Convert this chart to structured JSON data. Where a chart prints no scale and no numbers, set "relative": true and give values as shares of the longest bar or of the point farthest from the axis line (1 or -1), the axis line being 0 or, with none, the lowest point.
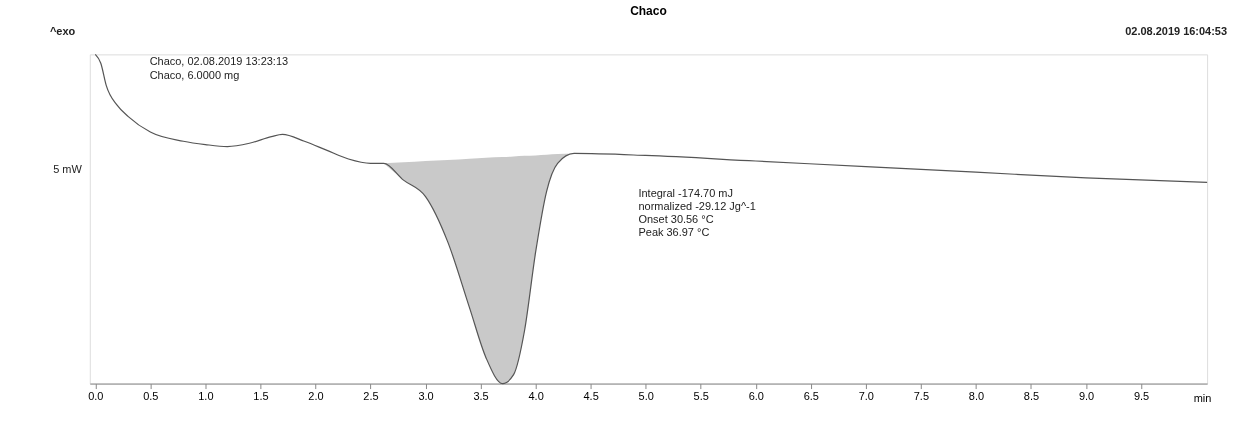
{
  "chart_data": {
    "type": "line",
    "title": "Chaco",
    "xlabel": "min",
    "ylabel": "5 mW",
    "relative": true,
    "marker": "none",
    "line_style": "solid",
    "annotations": [
      "^exo",
      "02.08.2019 16:04:53",
      "Chaco, 02.08.2019 13:23:13",
      "Chaco, 6.0000 mg",
      "Integral   -174.70 mJ",
      "  normalized   -29.12 Jg^-1",
      "Onset   30.56 °C",
      "Peak   36.97 °C"
    ],
    "x": [
      0.0,
      0.05,
      0.1,
      0.2,
      0.3,
      0.5,
      0.8,
      1.0,
      1.2,
      1.4,
      1.6,
      1.7,
      1.9,
      2.1,
      2.3,
      2.5,
      2.62,
      2.8,
      3.0,
      3.2,
      3.4,
      3.55,
      3.7,
      3.8,
      3.9,
      4.0,
      4.1,
      4.2,
      4.35,
      5.0,
      6.0,
      7.0,
      8.0,
      9.0,
      10.1
    ],
    "series": [
      {
        "color": "#555555",
        "values": [
          1.0,
          0.973,
          0.905,
          0.845,
          0.811,
          0.764,
          0.736,
          0.726,
          0.72,
          0.73,
          0.75,
          0.757,
          0.736,
          0.709,
          0.682,
          0.669,
          0.669,
          0.618,
          0.568,
          0.432,
          0.23,
          0.078,
          0.0,
          0.027,
          0.162,
          0.399,
          0.584,
          0.669,
          0.699,
          0.693,
          0.676,
          0.659,
          0.642,
          0.625,
          0.611
        ],
        "lower": [
          null,
          null,
          null,
          null,
          null,
          null,
          null,
          null,
          null,
          null,
          null,
          null,
          null,
          null,
          null,
          null,
          0.669,
          0.618,
          0.568,
          0.432,
          0.23,
          0.078,
          0.0,
          0.027,
          0.162,
          0.399,
          0.584,
          0.669,
          0.699,
          null,
          null,
          null,
          null,
          null,
          null
        ],
        "upper": [
          null,
          null,
          null,
          null,
          null,
          null,
          null,
          null,
          null,
          null,
          null,
          null,
          null,
          null,
          null,
          null,
          0.669,
          0.672,
          0.676,
          0.679,
          0.683,
          0.686,
          0.688,
          0.69,
          0.692,
          0.693,
          0.695,
          0.697,
          0.699,
          null,
          null,
          null,
          null,
          null,
          null
        ]
      }
    ],
    "xlim": [
      -0.05,
      10.1
    ],
    "xticks": [
      {
        "value": 0,
        "label": "0.0"
      },
      0.5,
      {
        "value": 1,
        "label": "1.0"
      },
      1.5,
      {
        "value": 2,
        "label": "2.0"
      },
      2.5,
      {
        "value": 3,
        "label": "3.0"
      },
      3.5,
      {
        "value": 4,
        "label": "4.0"
      },
      4.5,
      {
        "value": 5,
        "label": "5.0"
      },
      5.5,
      {
        "value": 6,
        "label": "6.0"
      },
      6.5,
      {
        "value": 7,
        "label": "7.0"
      },
      7.5,
      {
        "value": 8,
        "label": "8.0"
      },
      8.5,
      {
        "value": 9,
        "label": "9.0"
      },
      9.5
    ]
  }
}
